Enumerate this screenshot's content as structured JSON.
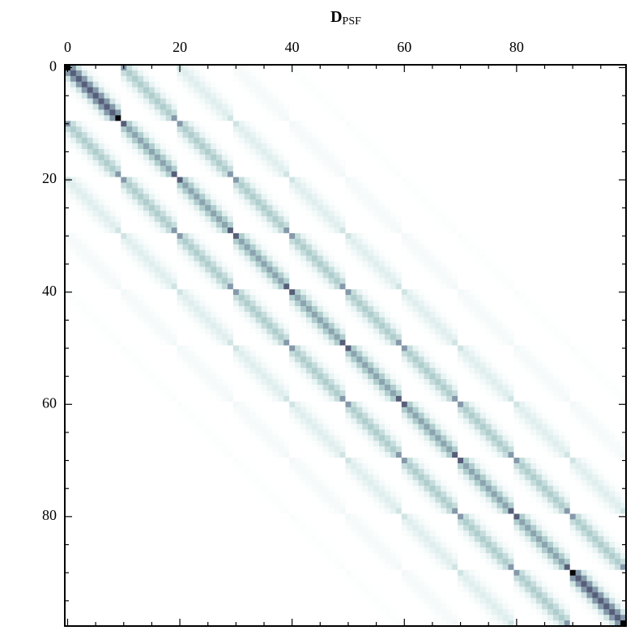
{
  "chart_data": {
    "type": "heatmap",
    "title": "D",
    "title_subscript": "PSF",
    "xlim": [
      -0.5,
      99.5
    ],
    "ylim": [
      -0.5,
      99.5
    ],
    "xticks": [
      0,
      20,
      40,
      60,
      80
    ],
    "yticks": [
      0,
      20,
      40,
      60,
      80
    ],
    "minor_ticks": [
      5,
      10,
      15,
      25,
      30,
      35,
      45,
      50,
      55,
      65,
      70,
      75,
      85,
      90,
      95
    ],
    "clim": [
      0,
      2
    ],
    "colors": [
      "#ffffff",
      "#dcecec",
      "#a8c8c8",
      "#6f7d98",
      "#3e3e5c",
      "#000000"
    ],
    "factor": [
      [
        1.4,
        0.75,
        0.35,
        0.1,
        0.03,
        0,
        0,
        0,
        0,
        0
      ],
      [
        0.75,
        1,
        0.75,
        0.35,
        0.1,
        0.03,
        0,
        0,
        0,
        0
      ],
      [
        0.35,
        0.75,
        1,
        0.75,
        0.35,
        0.1,
        0.03,
        0,
        0,
        0
      ],
      [
        0.1,
        0.35,
        0.75,
        1,
        0.75,
        0.35,
        0.1,
        0.03,
        0,
        0
      ],
      [
        0.03,
        0.1,
        0.35,
        0.75,
        1,
        0.75,
        0.35,
        0.1,
        0.03,
        0
      ],
      [
        0,
        0.03,
        0.1,
        0.35,
        0.75,
        1,
        0.75,
        0.35,
        0.1,
        0.03
      ],
      [
        0,
        0,
        0.03,
        0.1,
        0.35,
        0.75,
        1,
        0.75,
        0.35,
        0.1
      ],
      [
        0,
        0,
        0,
        0.03,
        0.1,
        0.35,
        0.75,
        1,
        0.75,
        0.35
      ],
      [
        0,
        0,
        0,
        0,
        0.03,
        0.1,
        0.35,
        0.75,
        1,
        0.75
      ],
      [
        0,
        0,
        0,
        0,
        0,
        0.03,
        0.1,
        0.35,
        0.75,
        1.4
      ]
    ]
  }
}
